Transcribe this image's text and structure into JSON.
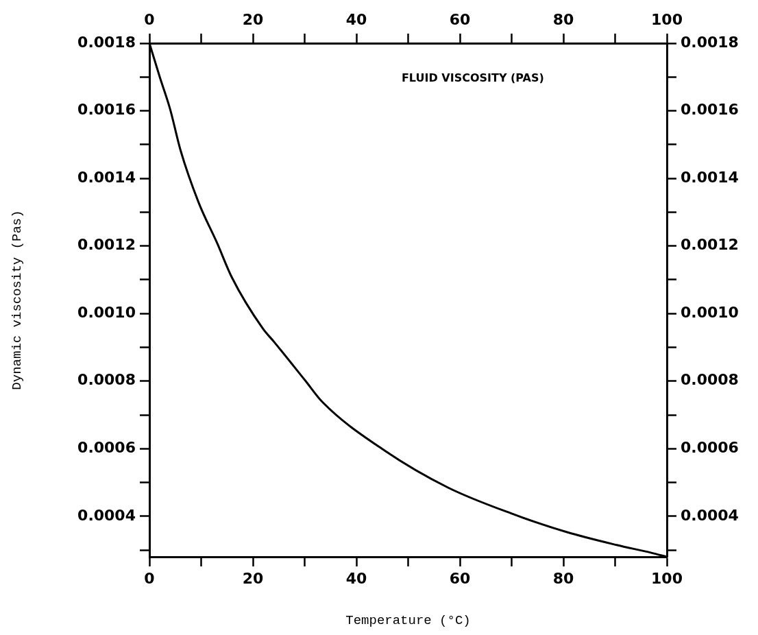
{
  "chart_data": {
    "type": "line",
    "xlabel": "Temperature (°C)",
    "ylabel": "Dynamic viscosity (Pas)",
    "annotations": [
      "FLUID VISCOSITY (PAS)"
    ],
    "x": [
      0,
      2,
      4,
      6,
      9.5,
      13.1,
      15.9,
      21.9,
      24.1,
      30.1,
      33.5,
      45.5,
      57.7,
      70,
      80.7,
      90.3,
      97,
      100
    ],
    "series": [
      {
        "color": "#000000",
        "values": [
          0.0018,
          0.0017,
          0.001605,
          0.001484,
          0.001329,
          0.001208,
          0.001108,
          0.000956,
          0.000916,
          0.000802,
          0.000737,
          0.000594,
          0.000485,
          0.000408,
          0.000353,
          0.000315,
          0.000292,
          0.00028
        ]
      }
    ],
    "xlim": [
      0,
      100
    ],
    "xticks": [
      0,
      {
        "value": 10,
        "label": null
      },
      20,
      {
        "value": 30,
        "label": null
      },
      40,
      {
        "value": 50,
        "label": null
      },
      60,
      {
        "value": 70,
        "label": null
      },
      80,
      {
        "value": 90,
        "label": null
      },
      100
    ],
    "x2lim": [
      0,
      100
    ],
    "x2ticks": [
      0,
      {
        "value": 10,
        "label": null
      },
      20,
      {
        "value": 30,
        "label": null
      },
      40,
      {
        "value": 50,
        "label": null
      },
      60,
      {
        "value": 70,
        "label": null
      },
      80,
      {
        "value": 90,
        "label": null
      },
      100
    ],
    "ylim": [
      0.00028,
      0.0018
    ],
    "yticks": [
      {
        "value": 0.0003,
        "label": null
      },
      0.0004,
      {
        "value": 0.0005,
        "label": null
      },
      0.0006,
      {
        "value": 0.0007,
        "label": null
      },
      0.0008,
      {
        "value": 0.0009,
        "label": null
      },
      {
        "value": 0.001,
        "label": "0.0010"
      },
      {
        "value": 0.0011,
        "label": null
      },
      0.0012,
      {
        "value": 0.0013,
        "label": null
      },
      0.0014,
      {
        "value": 0.0015,
        "label": null
      },
      0.0016,
      {
        "value": 0.0017,
        "label": null
      },
      0.0018
    ],
    "y2lim": [
      0.00028,
      0.0018
    ],
    "y2ticks": [
      {
        "value": 0.0003,
        "label": null
      },
      0.0004,
      {
        "value": 0.0005,
        "label": null
      },
      0.0006,
      {
        "value": 0.0007,
        "label": null
      },
      0.0008,
      {
        "value": 0.0009,
        "label": null
      },
      {
        "value": 0.001,
        "label": "0.0010"
      },
      {
        "value": 0.0011,
        "label": null
      },
      0.0012,
      {
        "value": 0.0013,
        "label": null
      },
      0.0014,
      {
        "value": 0.0015,
        "label": null
      },
      0.0016,
      {
        "value": 0.0017,
        "label": null
      },
      0.0018
    ],
    "grid": false,
    "legend": false,
    "marker": "none",
    "line_style": "solid"
  }
}
